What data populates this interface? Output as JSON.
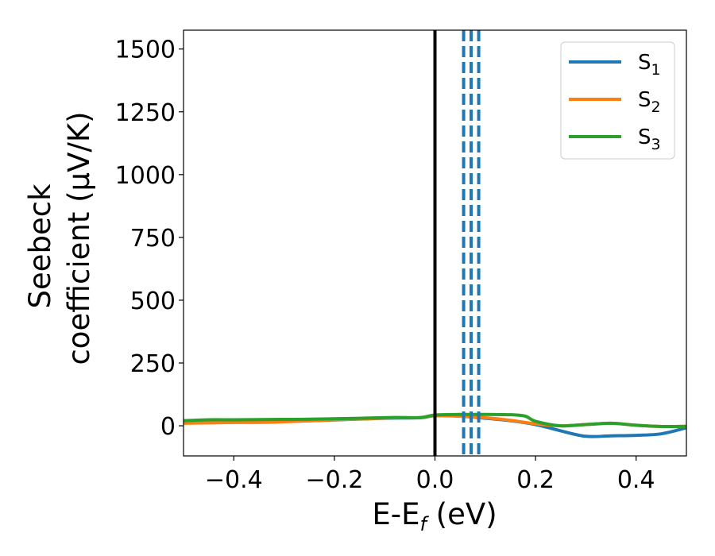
{
  "chart_data": {
    "type": "line",
    "xlabel": "E-E",
    "xlabel_sub": "f",
    "xlabel_unit": " (eV)",
    "ylabel_line1": "Seebeck",
    "ylabel_line2": "coefficient  (μV/K)",
    "xlim": [
      -0.5,
      0.5
    ],
    "ylim": [
      -120,
      1575
    ],
    "xticks": [
      -0.4,
      -0.2,
      0.0,
      0.2,
      0.4
    ],
    "xtick_labels": [
      "−0.4",
      "−0.2",
      "0.0",
      "0.2",
      "0.4"
    ],
    "yticks": [
      0,
      250,
      500,
      750,
      1000,
      1250,
      1500
    ],
    "ytick_labels": [
      "0",
      "250",
      "500",
      "750",
      "1000",
      "1250",
      "1500"
    ],
    "grid": false,
    "legend_position": "top-right",
    "vertical_lines": [
      {
        "x": 0.0,
        "style": "solid",
        "color": "#000000"
      },
      {
        "x": 0.057,
        "style": "dashed",
        "color": "#1f77b4"
      },
      {
        "x": 0.072,
        "style": "dashed",
        "color": "#1f77b4"
      },
      {
        "x": 0.087,
        "style": "dashed",
        "color": "#1f77b4"
      }
    ],
    "series": [
      {
        "name": "S",
        "sub": "1",
        "color": "#1f77b4",
        "x": [
          -0.5,
          -0.4,
          -0.3,
          -0.2,
          -0.1,
          -0.03,
          0.0,
          0.05,
          0.1,
          0.15,
          0.2,
          0.25,
          0.3,
          0.35,
          0.4,
          0.45,
          0.5
        ],
        "y": [
          12,
          14,
          17,
          23,
          30,
          32,
          40,
          38,
          30,
          20,
          5,
          -20,
          -42,
          -40,
          -38,
          -32,
          -8
        ]
      },
      {
        "name": "S",
        "sub": "2",
        "color": "#ff7f0e",
        "x": [
          -0.5,
          -0.4,
          -0.33,
          -0.25,
          -0.15,
          -0.08,
          -0.03,
          0.0,
          0.05,
          0.1,
          0.15,
          0.2,
          0.25,
          0.3,
          0.35,
          0.4,
          0.45,
          0.5
        ],
        "y": [
          10,
          13,
          14,
          20,
          27,
          32,
          33,
          40,
          38,
          32,
          22,
          8,
          0,
          5,
          10,
          2,
          -3,
          -2
        ]
      },
      {
        "name": "S",
        "sub": "3",
        "color": "#2ca02c",
        "x": [
          -0.5,
          -0.45,
          -0.4,
          -0.33,
          -0.25,
          -0.15,
          -0.08,
          -0.03,
          0.0,
          0.05,
          0.1,
          0.15,
          0.18,
          0.2,
          0.25,
          0.3,
          0.35,
          0.4,
          0.45,
          0.5
        ],
        "y": [
          20,
          24,
          24,
          25,
          26,
          30,
          33,
          32,
          43,
          45,
          45,
          44,
          38,
          18,
          0,
          5,
          10,
          2,
          -3,
          -2
        ]
      }
    ]
  }
}
